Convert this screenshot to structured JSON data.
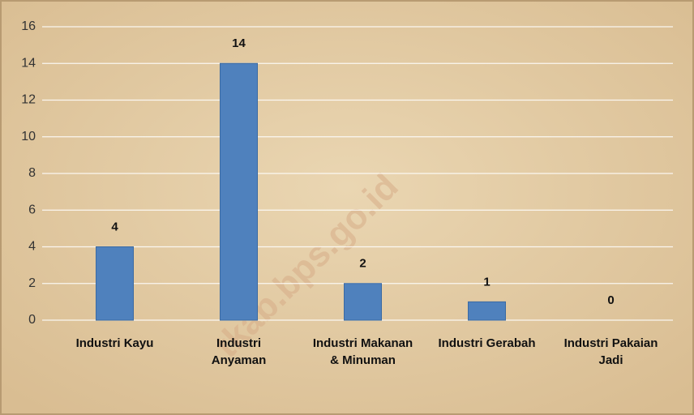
{
  "chart_data": {
    "type": "bar",
    "categories": [
      "Industri Kayu",
      "Industri Anyaman",
      "Industri Makanan & Minuman",
      "Industri Gerabah",
      "Industri Pakaian Jadi"
    ],
    "values": [
      4,
      14,
      2,
      1,
      0
    ],
    "color": "#4f81bd",
    "ylim": [
      0,
      16
    ],
    "yticks": [
      0,
      2,
      4,
      6,
      8,
      10,
      12,
      14,
      16
    ],
    "grid": true,
    "watermark": "tkab.bps.go.id"
  }
}
